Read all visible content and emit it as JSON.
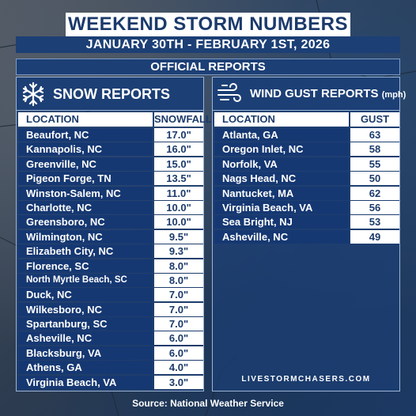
{
  "header": {
    "title": "WEEKEND STORM NUMBERS",
    "dates": "JANUARY 30TH - FEBRUARY 1ST, 2026",
    "subtitle": "OFFICIAL REPORTS"
  },
  "snow": {
    "title": "SNOW REPORTS",
    "icon": "snowflake-icon",
    "col_location": "LOCATION",
    "col_value": "SNOWFALL",
    "rows": [
      {
        "location": "Beaufort, NC",
        "value": "17.0\""
      },
      {
        "location": "Kannapolis, NC",
        "value": "16.0\""
      },
      {
        "location": "Greenville, NC",
        "value": "15.0\""
      },
      {
        "location": "Pigeon Forge, TN",
        "value": "13.5\""
      },
      {
        "location": "Winston-Salem, NC",
        "value": "11.0\""
      },
      {
        "location": "Charlotte, NC",
        "value": "10.0\""
      },
      {
        "location": "Greensboro, NC",
        "value": "10.0\""
      },
      {
        "location": "Wilmington, NC",
        "value": "9.5\""
      },
      {
        "location": "Elizabeth City, NC",
        "value": "9.3\""
      },
      {
        "location": "Florence, SC",
        "value": "8.0\""
      },
      {
        "location": "North Myrtle Beach, SC",
        "value": "8.0\""
      },
      {
        "location": "Duck, NC",
        "value": "7.0\""
      },
      {
        "location": "Wilkesboro, NC",
        "value": "7.0\""
      },
      {
        "location": "Spartanburg, SC",
        "value": "7.0\""
      },
      {
        "location": "Asheville, NC",
        "value": "6.0\""
      },
      {
        "location": "Blacksburg, VA",
        "value": "6.0\""
      },
      {
        "location": "Athens, GA",
        "value": "4.0\""
      },
      {
        "location": "Virginia Beach, VA",
        "value": "3.0\""
      }
    ]
  },
  "wind": {
    "title": "WIND GUST REPORTS",
    "unit": "(mph)",
    "icon": "wind-icon",
    "col_location": "LOCATION",
    "col_value": "GUST",
    "rows": [
      {
        "location": "Atlanta, GA",
        "value": "63"
      },
      {
        "location": "Oregon Inlet, NC",
        "value": "58"
      },
      {
        "location": "Norfolk, VA",
        "value": "55"
      },
      {
        "location": "Nags Head, NC",
        "value": "50"
      },
      {
        "location": "Nantucket, MA",
        "value": "62"
      },
      {
        "location": "Virginia Beach, VA",
        "value": "56"
      },
      {
        "location": "Sea Bright, NJ",
        "value": "53"
      },
      {
        "location": "Asheville, NC",
        "value": "49"
      }
    ]
  },
  "website": "LIVESTORMCHASERS.COM",
  "source": "Source: National Weather Service",
  "colors": {
    "navy": "#1c3f75",
    "title_text": "#1b3a6b",
    "white": "#ffffff"
  }
}
